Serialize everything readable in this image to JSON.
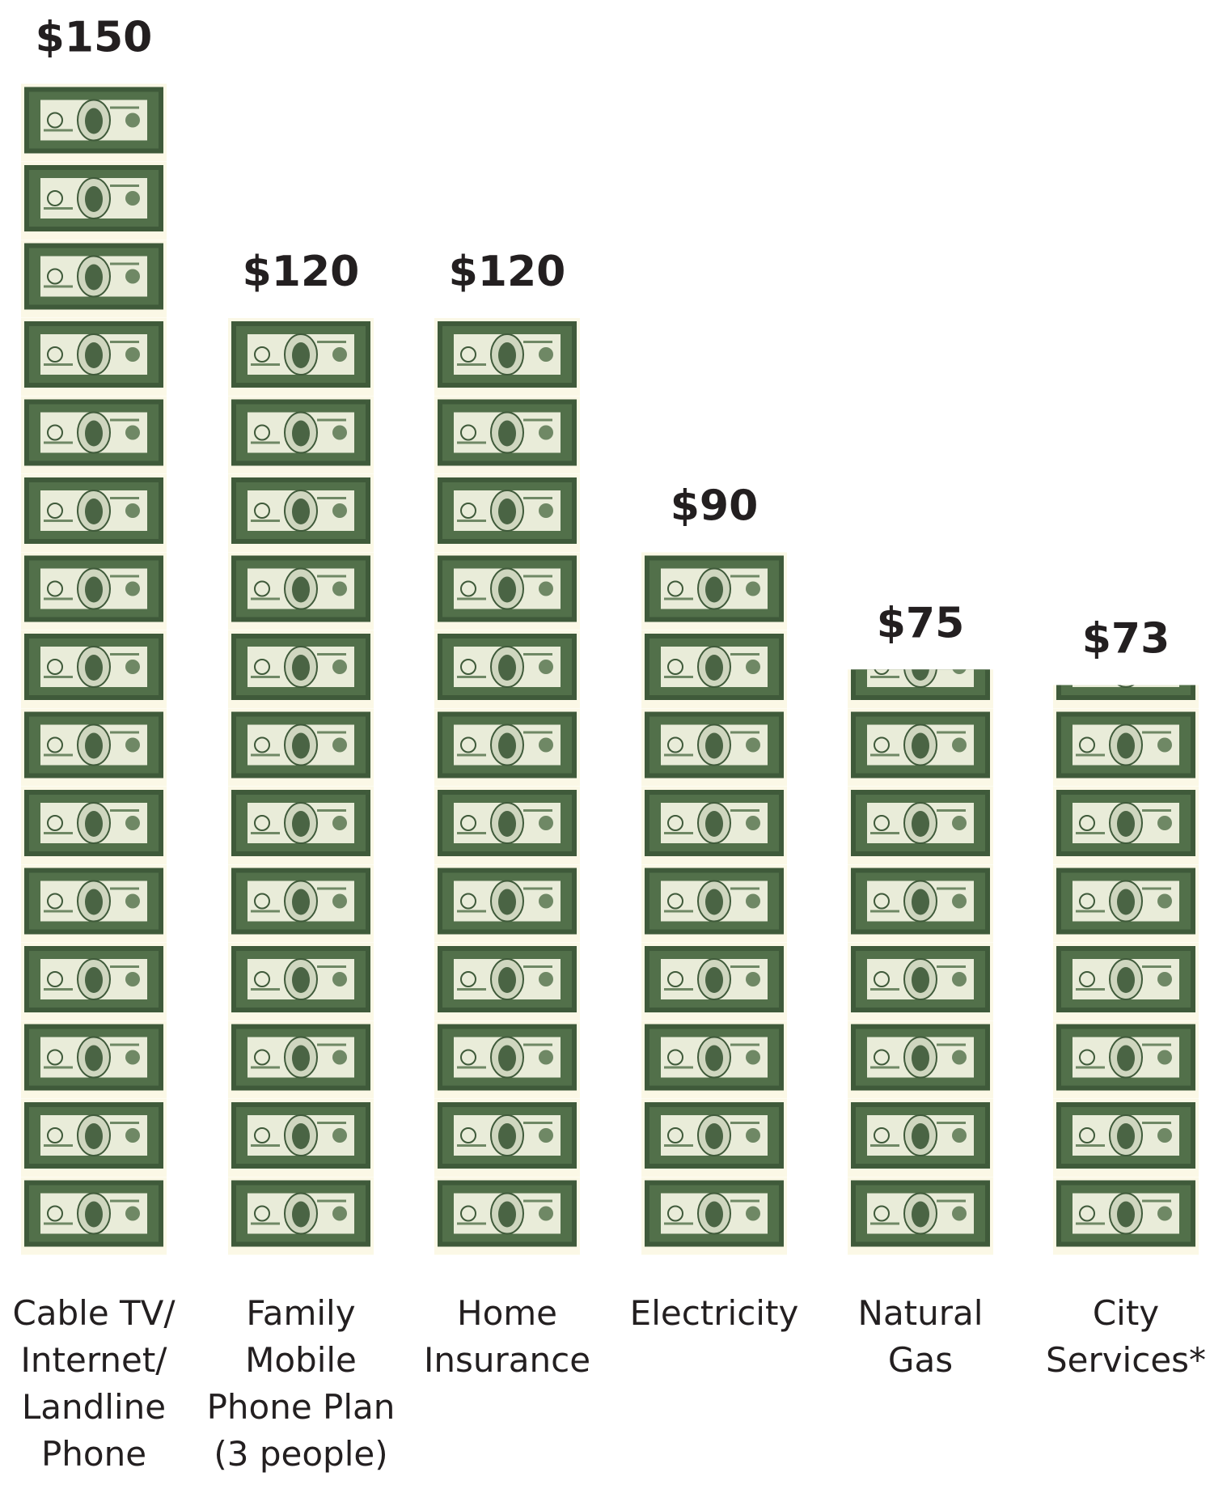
{
  "chart_data": {
    "type": "pictograph",
    "categories": [
      "Cable TV/\nInternet/\nLandline\nPhone",
      "Family\nMobile\nPhone Plan\n(3 people)",
      "Home\nInsurance",
      "Electricity",
      "Natural\nGas",
      "City\nServices*"
    ],
    "values": [
      150,
      120,
      120,
      90,
      75,
      73
    ],
    "value_labels": [
      "$150",
      "$120",
      "$120",
      "$90",
      "$75",
      "$73"
    ]
  }
}
